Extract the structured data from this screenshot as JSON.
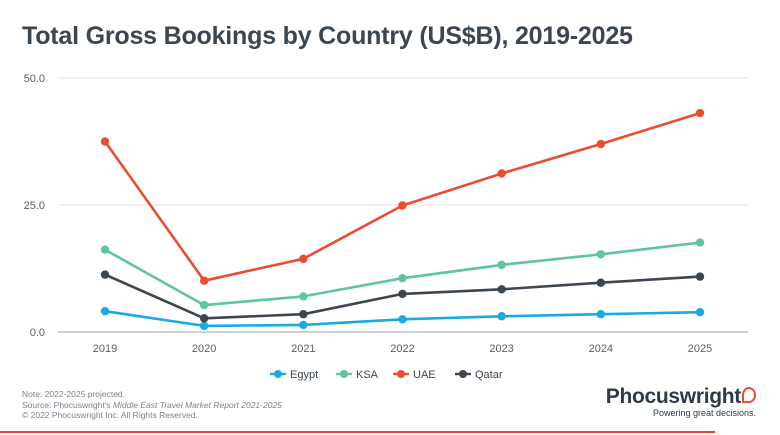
{
  "title": "Total Gross Bookings by Country (US$B), 2019-2025",
  "chart_data": {
    "type": "line",
    "title": "Total Gross Bookings by Country (US$B), 2019-2025",
    "x": [
      "2019",
      "2020",
      "2021",
      "2022",
      "2023",
      "2024",
      "2025"
    ],
    "ylim": [
      0,
      50
    ],
    "yticks": [
      "0.0",
      "25.0",
      "50.0"
    ],
    "ytick_values": [
      0,
      25,
      50
    ],
    "grid": "horizontal",
    "legend_position": "bottom",
    "series": [
      {
        "name": "Egypt",
        "color": "#1aa9e0",
        "values": [
          4.1,
          1.2,
          1.4,
          2.5,
          3.1,
          3.5,
          3.9
        ]
      },
      {
        "name": "KSA",
        "color": "#5ec4a2",
        "values": [
          16.2,
          5.3,
          7.0,
          10.6,
          13.2,
          15.3,
          17.6
        ]
      },
      {
        "name": "UAE",
        "color": "#e94e2f",
        "values": [
          37.5,
          10.1,
          14.4,
          24.9,
          31.2,
          37.0,
          43.1
        ]
      },
      {
        "name": "Qatar",
        "color": "#3c4650",
        "values": [
          11.3,
          2.7,
          3.5,
          7.5,
          8.4,
          9.7,
          10.9
        ]
      }
    ]
  },
  "footnote": {
    "note": "Note: 2022-2025 projected.",
    "source_prefix": "Source: Phocuswright's ",
    "source_report": "Middle East Travel Market Report 2021-2025",
    "copyright": "© 2022 Phocuswright Inc. All Rights Reserved."
  },
  "brand": {
    "name": "Phocuswright",
    "tagline": "Powering great decisions."
  }
}
